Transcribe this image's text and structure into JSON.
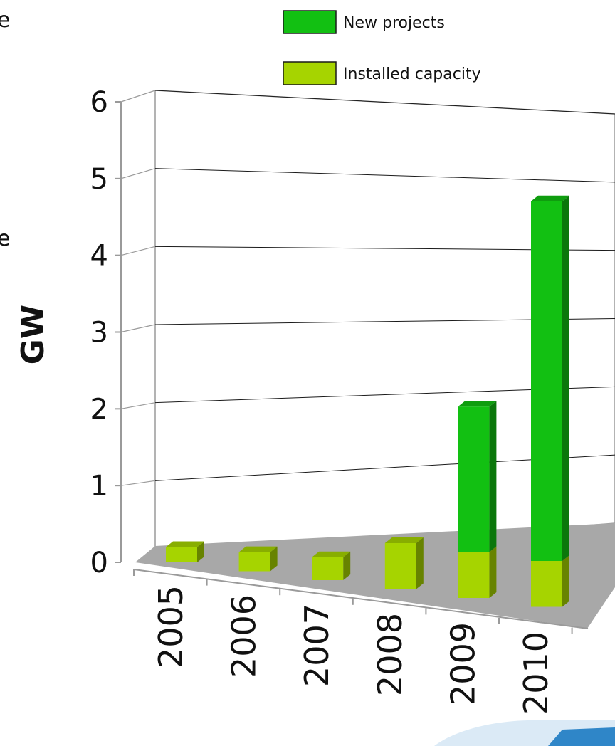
{
  "chart_data": {
    "type": "bar",
    "stacked": true,
    "three_d": true,
    "title": "",
    "xlabel": "",
    "ylabel": "GW",
    "ylim": [
      0,
      6
    ],
    "yticks": [
      "0",
      "1",
      "2",
      "3",
      "4",
      "5",
      "6"
    ],
    "categories": [
      "2005",
      "2006",
      "2007",
      "2008",
      "2009",
      "2010"
    ],
    "series": [
      {
        "name": "Installed capacity",
        "values": [
          0.2,
          0.25,
          0.3,
          0.6,
          0.6,
          0.6
        ],
        "color": "#a6d400"
      },
      {
        "name": "New projects",
        "values": [
          0,
          0,
          0,
          0,
          1.9,
          4.7
        ],
        "color": "#12c012"
      }
    ],
    "grid": true,
    "legend_position": "top"
  },
  "page": {
    "left_edge_chars": [
      "e",
      "e"
    ]
  }
}
